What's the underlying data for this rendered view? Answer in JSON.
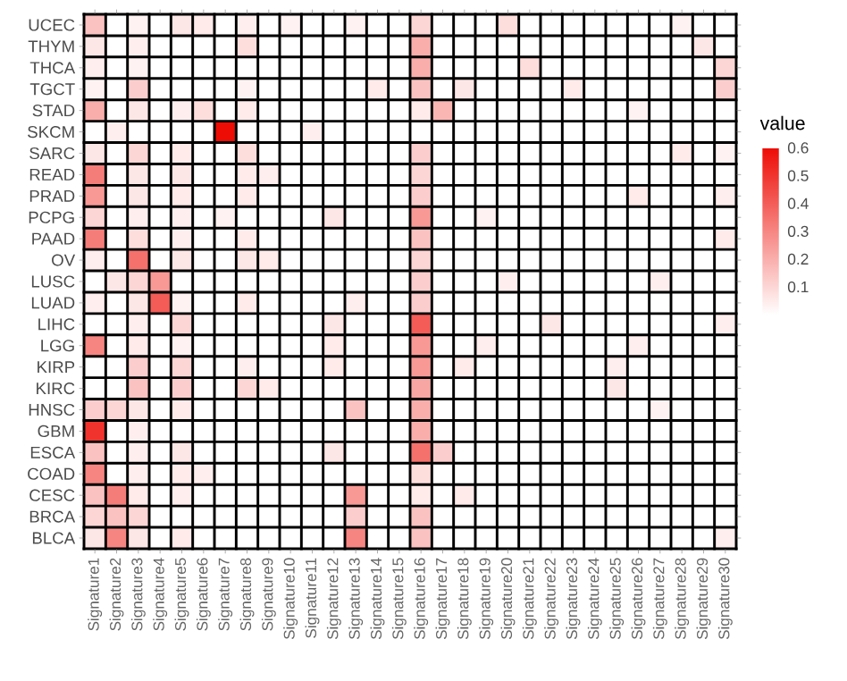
{
  "chart_data": {
    "type": "heatmap",
    "clabel": "value",
    "categories": [
      "Signature1",
      "Signature2",
      "Signature3",
      "Signature4",
      "Signature5",
      "Signature6",
      "Signature7",
      "Signature8",
      "Signature9",
      "Signature10",
      "Signature11",
      "Signature12",
      "Signature13",
      "Signature14",
      "Signature15",
      "Signature16",
      "Signature17",
      "Signature18",
      "Signature19",
      "Signature20",
      "Signature21",
      "Signature22",
      "Signature23",
      "Signature24",
      "Signature25",
      "Signature26",
      "Signature27",
      "Signature28",
      "Signature29",
      "Signature30"
    ],
    "y_categories": [
      "UCEC",
      "THYM",
      "THCA",
      "TGCT",
      "STAD",
      "SKCM",
      "SARC",
      "READ",
      "PRAD",
      "PCPG",
      "PAAD",
      "OV",
      "LUSC",
      "LUAD",
      "LIHC",
      "LGG",
      "KIRP",
      "KIRC",
      "HNSC",
      "GBM",
      "ESCA",
      "COAD",
      "CESC",
      "BRCA",
      "BLCA"
    ],
    "cells": [
      [
        0.15,
        0,
        0.03,
        0,
        0.06,
        0.05,
        0,
        0.04,
        0,
        0.03,
        0,
        0,
        0.03,
        0,
        0,
        0.1,
        0,
        0,
        0,
        0.08,
        0,
        0,
        0,
        0,
        0,
        0,
        0,
        0.03,
        0,
        0
      ],
      [
        0.06,
        0,
        0.04,
        0,
        0,
        0,
        0,
        0.08,
        0,
        0,
        0,
        0,
        0,
        0,
        0,
        0.2,
        0,
        0,
        0,
        0,
        0,
        0,
        0,
        0,
        0,
        0,
        0,
        0,
        0.06,
        0
      ],
      [
        0.04,
        0,
        0.03,
        0,
        0,
        0,
        0,
        0,
        0,
        0,
        0,
        0,
        0,
        0,
        0,
        0.2,
        0,
        0,
        0,
        0,
        0.08,
        0,
        0,
        0,
        0,
        0,
        0,
        0,
        0,
        0.1
      ],
      [
        0.03,
        0,
        0.12,
        0,
        0,
        0,
        0,
        0.03,
        0,
        0,
        0,
        0,
        0,
        0.05,
        0,
        0.15,
        0,
        0.06,
        0,
        0,
        0,
        0,
        0.05,
        0,
        0,
        0,
        0,
        0,
        0,
        0.12
      ],
      [
        0.2,
        0,
        0.06,
        0,
        0.04,
        0.08,
        0,
        0.05,
        0,
        0,
        0,
        0,
        0,
        0,
        0,
        0.05,
        0.18,
        0,
        0,
        0,
        0,
        0,
        0,
        0,
        0,
        0.03,
        0,
        0,
        0,
        0
      ],
      [
        0,
        0.04,
        0,
        0,
        0,
        0,
        0.6,
        0,
        0,
        0,
        0.04,
        0,
        0,
        0,
        0,
        0,
        0,
        0,
        0,
        0,
        0,
        0,
        0,
        0,
        0,
        0,
        0,
        0,
        0,
        0
      ],
      [
        0.06,
        0,
        0.1,
        0,
        0.05,
        0,
        0,
        0.08,
        0,
        0,
        0,
        0,
        0,
        0,
        0,
        0.12,
        0,
        0,
        0,
        0,
        0,
        0,
        0,
        0,
        0,
        0,
        0,
        0.05,
        0,
        0.03
      ],
      [
        0.32,
        0,
        0.06,
        0,
        0.06,
        0,
        0,
        0.05,
        0.04,
        0,
        0,
        0,
        0,
        0,
        0,
        0.1,
        0,
        0,
        0,
        0,
        0,
        0,
        0,
        0,
        0,
        0,
        0,
        0,
        0,
        0
      ],
      [
        0.25,
        0,
        0.06,
        0,
        0.05,
        0,
        0,
        0.05,
        0,
        0,
        0,
        0,
        0,
        0,
        0,
        0.12,
        0,
        0,
        0,
        0,
        0,
        0,
        0,
        0,
        0,
        0.05,
        0,
        0,
        0,
        0.04
      ],
      [
        0.1,
        0,
        0.04,
        0,
        0.04,
        0,
        0.03,
        0,
        0,
        0,
        0,
        0.06,
        0,
        0,
        0,
        0.25,
        0,
        0,
        0.03,
        0,
        0,
        0,
        0,
        0,
        0,
        0,
        0,
        0,
        0,
        0
      ],
      [
        0.32,
        0,
        0.08,
        0,
        0.04,
        0,
        0,
        0.05,
        0,
        0,
        0,
        0,
        0,
        0,
        0,
        0.15,
        0,
        0,
        0,
        0,
        0,
        0,
        0,
        0,
        0,
        0,
        0,
        0,
        0,
        0.05
      ],
      [
        0.04,
        0,
        0.35,
        0,
        0.06,
        0,
        0,
        0.06,
        0.05,
        0,
        0,
        0,
        0,
        0,
        0,
        0.1,
        0,
        0,
        0,
        0,
        0,
        0,
        0,
        0,
        0,
        0,
        0,
        0,
        0,
        0
      ],
      [
        0,
        0.06,
        0.1,
        0.25,
        0,
        0,
        0,
        0,
        0,
        0,
        0,
        0,
        0,
        0,
        0,
        0.12,
        0,
        0,
        0,
        0.04,
        0,
        0,
        0,
        0,
        0,
        0,
        0.04,
        0,
        0,
        0
      ],
      [
        0.04,
        0,
        0.06,
        0.4,
        0.03,
        0,
        0,
        0.05,
        0,
        0,
        0,
        0,
        0.04,
        0,
        0,
        0.12,
        0,
        0,
        0,
        0,
        0,
        0,
        0,
        0,
        0,
        0,
        0,
        0,
        0,
        0
      ],
      [
        0,
        0,
        0.04,
        0,
        0.1,
        0,
        0,
        0,
        0,
        0,
        0,
        0.06,
        0,
        0,
        0,
        0.4,
        0,
        0,
        0,
        0,
        0,
        0.06,
        0,
        0,
        0,
        0,
        0,
        0,
        0,
        0.04
      ],
      [
        0.3,
        0,
        0.05,
        0,
        0.03,
        0,
        0,
        0,
        0,
        0,
        0,
        0.05,
        0,
        0,
        0,
        0.25,
        0,
        0,
        0.04,
        0,
        0,
        0,
        0,
        0,
        0,
        0.04,
        0,
        0,
        0,
        0
      ],
      [
        0,
        0,
        0.12,
        0,
        0.1,
        0,
        0,
        0.04,
        0,
        0,
        0,
        0.05,
        0,
        0,
        0,
        0.25,
        0,
        0.05,
        0,
        0,
        0,
        0,
        0,
        0,
        0.04,
        0,
        0,
        0,
        0,
        0
      ],
      [
        0,
        0,
        0.15,
        0,
        0.12,
        0,
        0,
        0.1,
        0.05,
        0,
        0,
        0,
        0,
        0,
        0,
        0.22,
        0,
        0,
        0,
        0,
        0,
        0,
        0,
        0,
        0.06,
        0,
        0,
        0,
        0,
        0
      ],
      [
        0.12,
        0.1,
        0.06,
        0,
        0.05,
        0,
        0,
        0,
        0,
        0,
        0,
        0,
        0.15,
        0,
        0,
        0.2,
        0,
        0,
        0,
        0,
        0,
        0,
        0,
        0,
        0,
        0,
        0.03,
        0,
        0,
        0
      ],
      [
        0.5,
        0,
        0.04,
        0,
        0,
        0,
        0,
        0,
        0,
        0,
        0,
        0,
        0,
        0,
        0,
        0.2,
        0,
        0,
        0,
        0,
        0,
        0,
        0,
        0,
        0,
        0,
        0,
        0,
        0,
        0
      ],
      [
        0.15,
        0,
        0.04,
        0,
        0.06,
        0,
        0,
        0,
        0,
        0,
        0,
        0.06,
        0,
        0,
        0,
        0.35,
        0.12,
        0,
        0,
        0,
        0,
        0,
        0,
        0,
        0,
        0,
        0,
        0,
        0,
        0
      ],
      [
        0.3,
        0,
        0.04,
        0,
        0.05,
        0.04,
        0,
        0,
        0,
        0,
        0,
        0,
        0,
        0,
        0,
        0.08,
        0,
        0,
        0,
        0,
        0,
        0,
        0,
        0,
        0,
        0,
        0,
        0,
        0,
        0
      ],
      [
        0.15,
        0.32,
        0.05,
        0,
        0.04,
        0,
        0,
        0,
        0,
        0,
        0,
        0,
        0.25,
        0,
        0,
        0.05,
        0,
        0.05,
        0,
        0,
        0,
        0,
        0,
        0,
        0,
        0,
        0,
        0,
        0,
        0
      ],
      [
        0.1,
        0.15,
        0.1,
        0,
        0,
        0,
        0,
        0,
        0,
        0,
        0,
        0,
        0.12,
        0,
        0,
        0.15,
        0,
        0,
        0,
        0,
        0,
        0,
        0,
        0,
        0,
        0,
        0,
        0,
        0,
        0
      ],
      [
        0.06,
        0.3,
        0.06,
        0,
        0.05,
        0,
        0,
        0,
        0,
        0,
        0,
        0,
        0.3,
        0,
        0,
        0.15,
        0,
        0,
        0,
        0,
        0,
        0,
        0,
        0,
        0,
        0,
        0,
        0,
        0,
        0.04
      ]
    ],
    "grid": true,
    "clim": [
      0,
      0.6
    ],
    "cticks": [
      0.1,
      0.2,
      0.3,
      0.4,
      0.5,
      0.6
    ]
  }
}
